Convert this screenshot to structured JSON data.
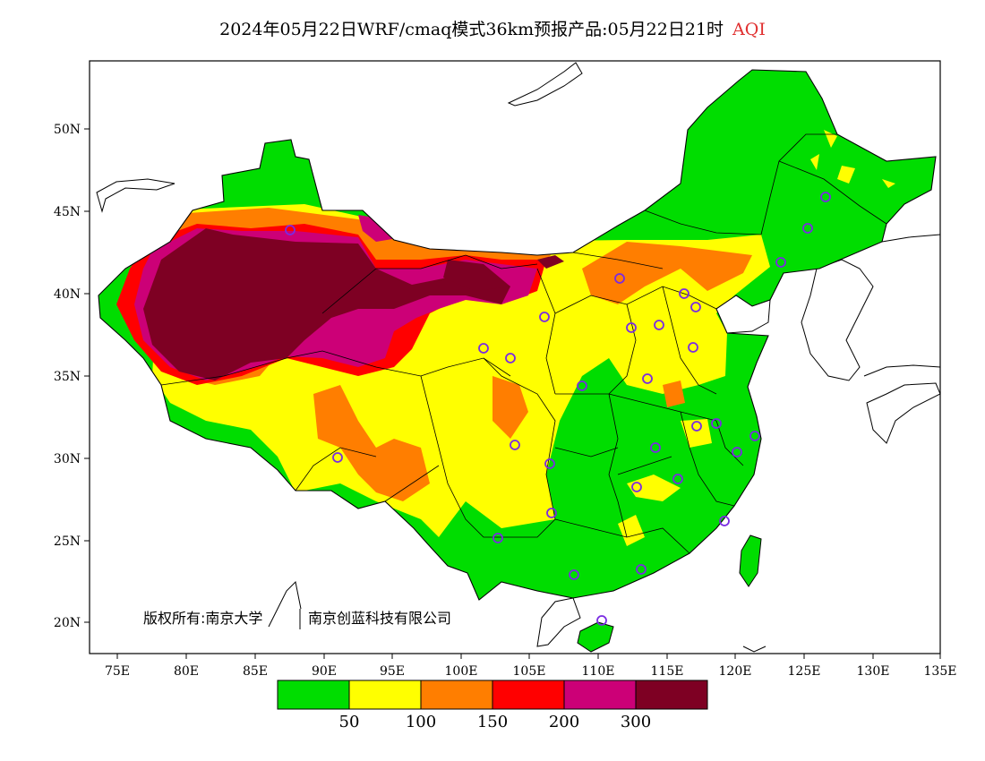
{
  "header": {
    "title_main": "2024年05月22日WRF/cmaq模式36km预报产品:05月22日21时",
    "title_variable": "AQI"
  },
  "map": {
    "lon_labels": [
      "75E",
      "80E",
      "85E",
      "90E",
      "95E",
      "100E",
      "105E",
      "110E",
      "115E",
      "120E",
      "125E",
      "130E",
      "135E"
    ],
    "lat_labels": [
      "50N",
      "45N",
      "40N",
      "35N",
      "30N",
      "25N",
      "20N"
    ],
    "copyright": "版权所有:南京大学",
    "copyright_org2": "南京创蓝科技有限公司"
  },
  "colorbar": {
    "colors": [
      "#00dd00",
      "#ffff00",
      "#ff7e00",
      "#ff0000",
      "#cc0077",
      "#7e0023"
    ],
    "labels": [
      "50",
      "100",
      "150",
      "200",
      "300"
    ]
  },
  "colors": {
    "good": "#00dd00",
    "moderate": "#ffff00",
    "usg": "#ff7e00",
    "unhealthy": "#ff0000",
    "very_unhealthy": "#cc0077",
    "hazardous": "#7e0023",
    "station": "#7a2be2"
  }
}
